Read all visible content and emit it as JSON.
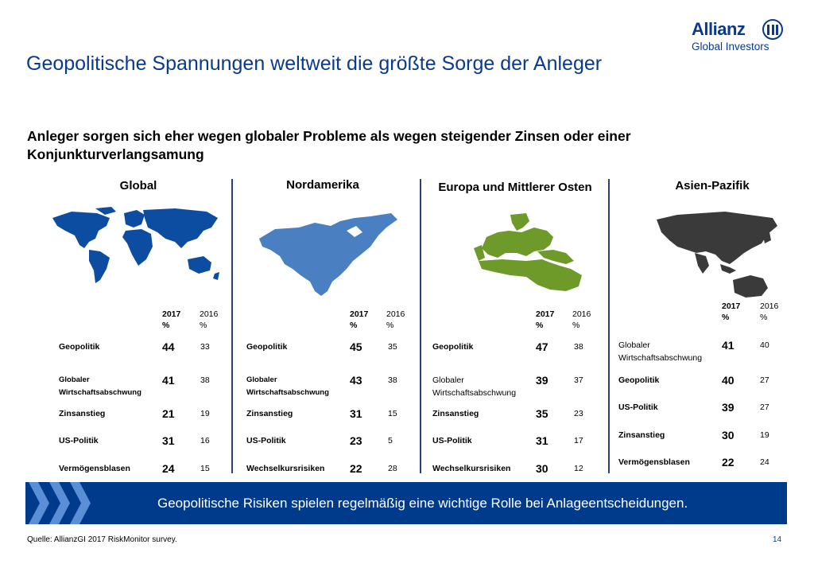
{
  "brand": {
    "name": "Allianz",
    "sub": "Global Investors"
  },
  "title": "Geopolitische Spannungen weltweit die größte Sorge der Anleger",
  "subtitle": "Anleger sorgen sich eher wegen globaler Probleme als wegen steigender Zinsen oder einer Konjunkturverlangsamung",
  "col_2017": "2017 %",
  "col_2016": "2016 %",
  "colors": {
    "global": "#0c4da2",
    "nordamerika": "#4a7fc1",
    "europa": "#6e9a2a",
    "asien": "#3a3a3a",
    "banner": "#003a8a"
  },
  "regions": [
    {
      "name": "Global",
      "map_icon": "world-map-icon",
      "rows": [
        {
          "label": "Geopolitik",
          "v2017": "44",
          "v2016": "33"
        },
        {
          "label": "Globaler Wirtschaftsabschwung",
          "v2017": "41",
          "v2016": "38"
        },
        {
          "label": "Zinsanstieg",
          "v2017": "21",
          "v2016": "19"
        },
        {
          "label": "US-Politik",
          "v2017": "31",
          "v2016": "16"
        },
        {
          "label": "Vermögensblasen",
          "v2017": "24",
          "v2016": "15"
        }
      ]
    },
    {
      "name": "Nordamerika",
      "map_icon": "north-america-map-icon",
      "rows": [
        {
          "label": "Geopolitik",
          "v2017": "45",
          "v2016": "35"
        },
        {
          "label": "Globaler Wirtschaftsabschwung",
          "v2017": "43",
          "v2016": "38"
        },
        {
          "label": "Zinsanstieg",
          "v2017": "31",
          "v2016": "15"
        },
        {
          "label": "US-Politik",
          "v2017": "23",
          "v2016": "5"
        },
        {
          "label": "Wechselkursrisiken",
          "v2017": "22",
          "v2016": "28"
        }
      ]
    },
    {
      "name": "Europa und Mittlerer Osten",
      "map_icon": "europe-middle-east-map-icon",
      "rows": [
        {
          "label": "Geopolitik",
          "v2017": "47",
          "v2016": "38"
        },
        {
          "label": "Globaler Wirtschaftsabschwung",
          "v2017": "39",
          "v2016": "37"
        },
        {
          "label": "Zinsanstieg",
          "v2017": "35",
          "v2016": "23"
        },
        {
          "label": "US-Politik",
          "v2017": "31",
          "v2016": "17"
        },
        {
          "label": "Wechselkursrisiken",
          "v2017": "30",
          "v2016": "12"
        }
      ]
    },
    {
      "name": "Asien-Pazifik",
      "map_icon": "asia-pacific-map-icon",
      "rows": [
        {
          "label": "Globaler Wirtschaftsabschwung",
          "v2017": "41",
          "v2016": "40"
        },
        {
          "label": "Geopolitik",
          "v2017": "40",
          "v2016": "27"
        },
        {
          "label": "US-Politik",
          "v2017": "39",
          "v2016": "27"
        },
        {
          "label": "Zinsanstieg",
          "v2017": "30",
          "v2016": "19"
        },
        {
          "label": "Vermögensblasen",
          "v2017": "22",
          "v2016": "24"
        }
      ]
    }
  ],
  "banner_text": "Geopolitische Risiken spielen regelmäßig eine wichtige Rolle bei Anlageentscheidungen.",
  "source": "Quelle: AllianzGI 2017 RiskMonitor survey.",
  "page_number": "14"
}
